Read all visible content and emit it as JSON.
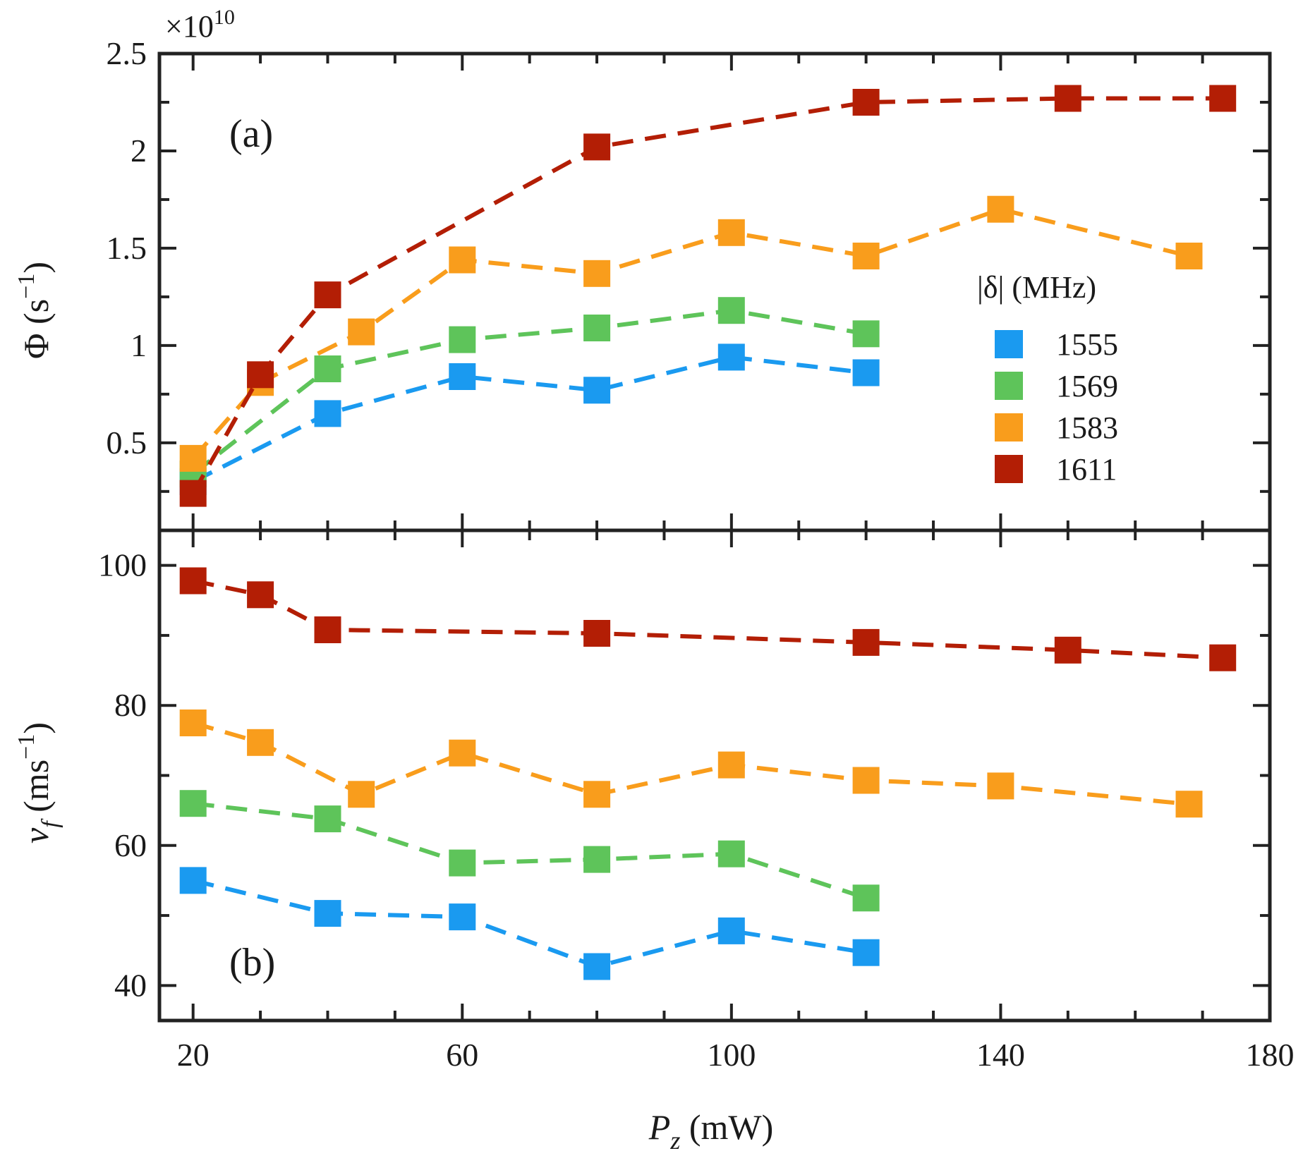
{
  "chart_data": [
    {
      "type": "line",
      "panel_label": "(a)",
      "ylabel": "Φ (s",
      "ylabel_sup": "−1",
      "ylabel_close": ")",
      "y_multiplier": "×10",
      "y_multiplier_exp": "10",
      "ylim": [
        0.05,
        2.5
      ],
      "yticks": [
        0.5,
        1,
        1.5,
        2,
        2.5
      ],
      "ytick_labels": [
        "0.5",
        "1",
        "1.5",
        "2",
        "2.5"
      ],
      "xlim": [
        15,
        180
      ],
      "legend": {
        "title": "|δ| (MHz)",
        "position": "right",
        "entries": [
          "1555",
          "1569",
          "1583",
          "1611"
        ]
      },
      "series": [
        {
          "name": "1555",
          "color": "#1a9af0",
          "x": [
            20,
            40,
            60,
            80,
            100,
            120
          ],
          "y": [
            0.3,
            0.65,
            0.84,
            0.77,
            0.94,
            0.86
          ]
        },
        {
          "name": "1569",
          "color": "#5ec45a",
          "x": [
            20,
            40,
            60,
            80,
            100,
            120
          ],
          "y": [
            0.34,
            0.88,
            1.03,
            1.09,
            1.18,
            1.06
          ]
        },
        {
          "name": "1583",
          "color": "#f99d1c",
          "x": [
            20,
            30,
            45,
            60,
            80,
            100,
            120,
            140,
            168
          ],
          "y": [
            0.42,
            0.81,
            1.07,
            1.44,
            1.37,
            1.58,
            1.46,
            1.7,
            1.46
          ]
        },
        {
          "name": "1611",
          "color": "#b31e05",
          "x": [
            20,
            30,
            40,
            80,
            120,
            150,
            173
          ],
          "y": [
            0.24,
            0.85,
            1.26,
            2.02,
            2.25,
            2.27,
            2.27
          ]
        }
      ]
    },
    {
      "type": "line",
      "panel_label": "(b)",
      "ylabel": "v",
      "ylabel_sub": "f",
      "ylabel_unit": " (ms",
      "ylabel_sup": "−1",
      "ylabel_close": ")",
      "xlabel": "P",
      "xlabel_sub": "z",
      "xlabel_unit": " (mW)",
      "ylim": [
        35,
        105
      ],
      "yticks": [
        40,
        60,
        80,
        100
      ],
      "ytick_labels": [
        "40",
        "60",
        "80",
        "100"
      ],
      "xlim": [
        15,
        180
      ],
      "xticks": [
        20,
        60,
        100,
        140,
        180
      ],
      "xtick_labels": [
        "20",
        "60",
        "100",
        "140",
        "180"
      ],
      "series": [
        {
          "name": "1555",
          "color": "#1a9af0",
          "x": [
            20,
            40,
            60,
            80,
            100,
            120
          ],
          "y": [
            55,
            50.3,
            49.8,
            42.7,
            47.8,
            44.7
          ]
        },
        {
          "name": "1569",
          "color": "#5ec45a",
          "x": [
            20,
            40,
            60,
            80,
            100,
            120
          ],
          "y": [
            66,
            63.8,
            57.5,
            58,
            58.8,
            52.5
          ]
        },
        {
          "name": "1583",
          "color": "#f99d1c",
          "x": [
            20,
            30,
            45,
            60,
            80,
            100,
            120,
            140,
            168
          ],
          "y": [
            77.5,
            74.7,
            67.3,
            73.2,
            67.3,
            71.5,
            69.3,
            68.5,
            65.9
          ]
        },
        {
          "name": "1611",
          "color": "#b31e05",
          "x": [
            20,
            30,
            40,
            80,
            120,
            150,
            173
          ],
          "y": [
            97.8,
            95.8,
            90.8,
            90.3,
            89,
            87.9,
            86.8
          ]
        }
      ]
    }
  ]
}
